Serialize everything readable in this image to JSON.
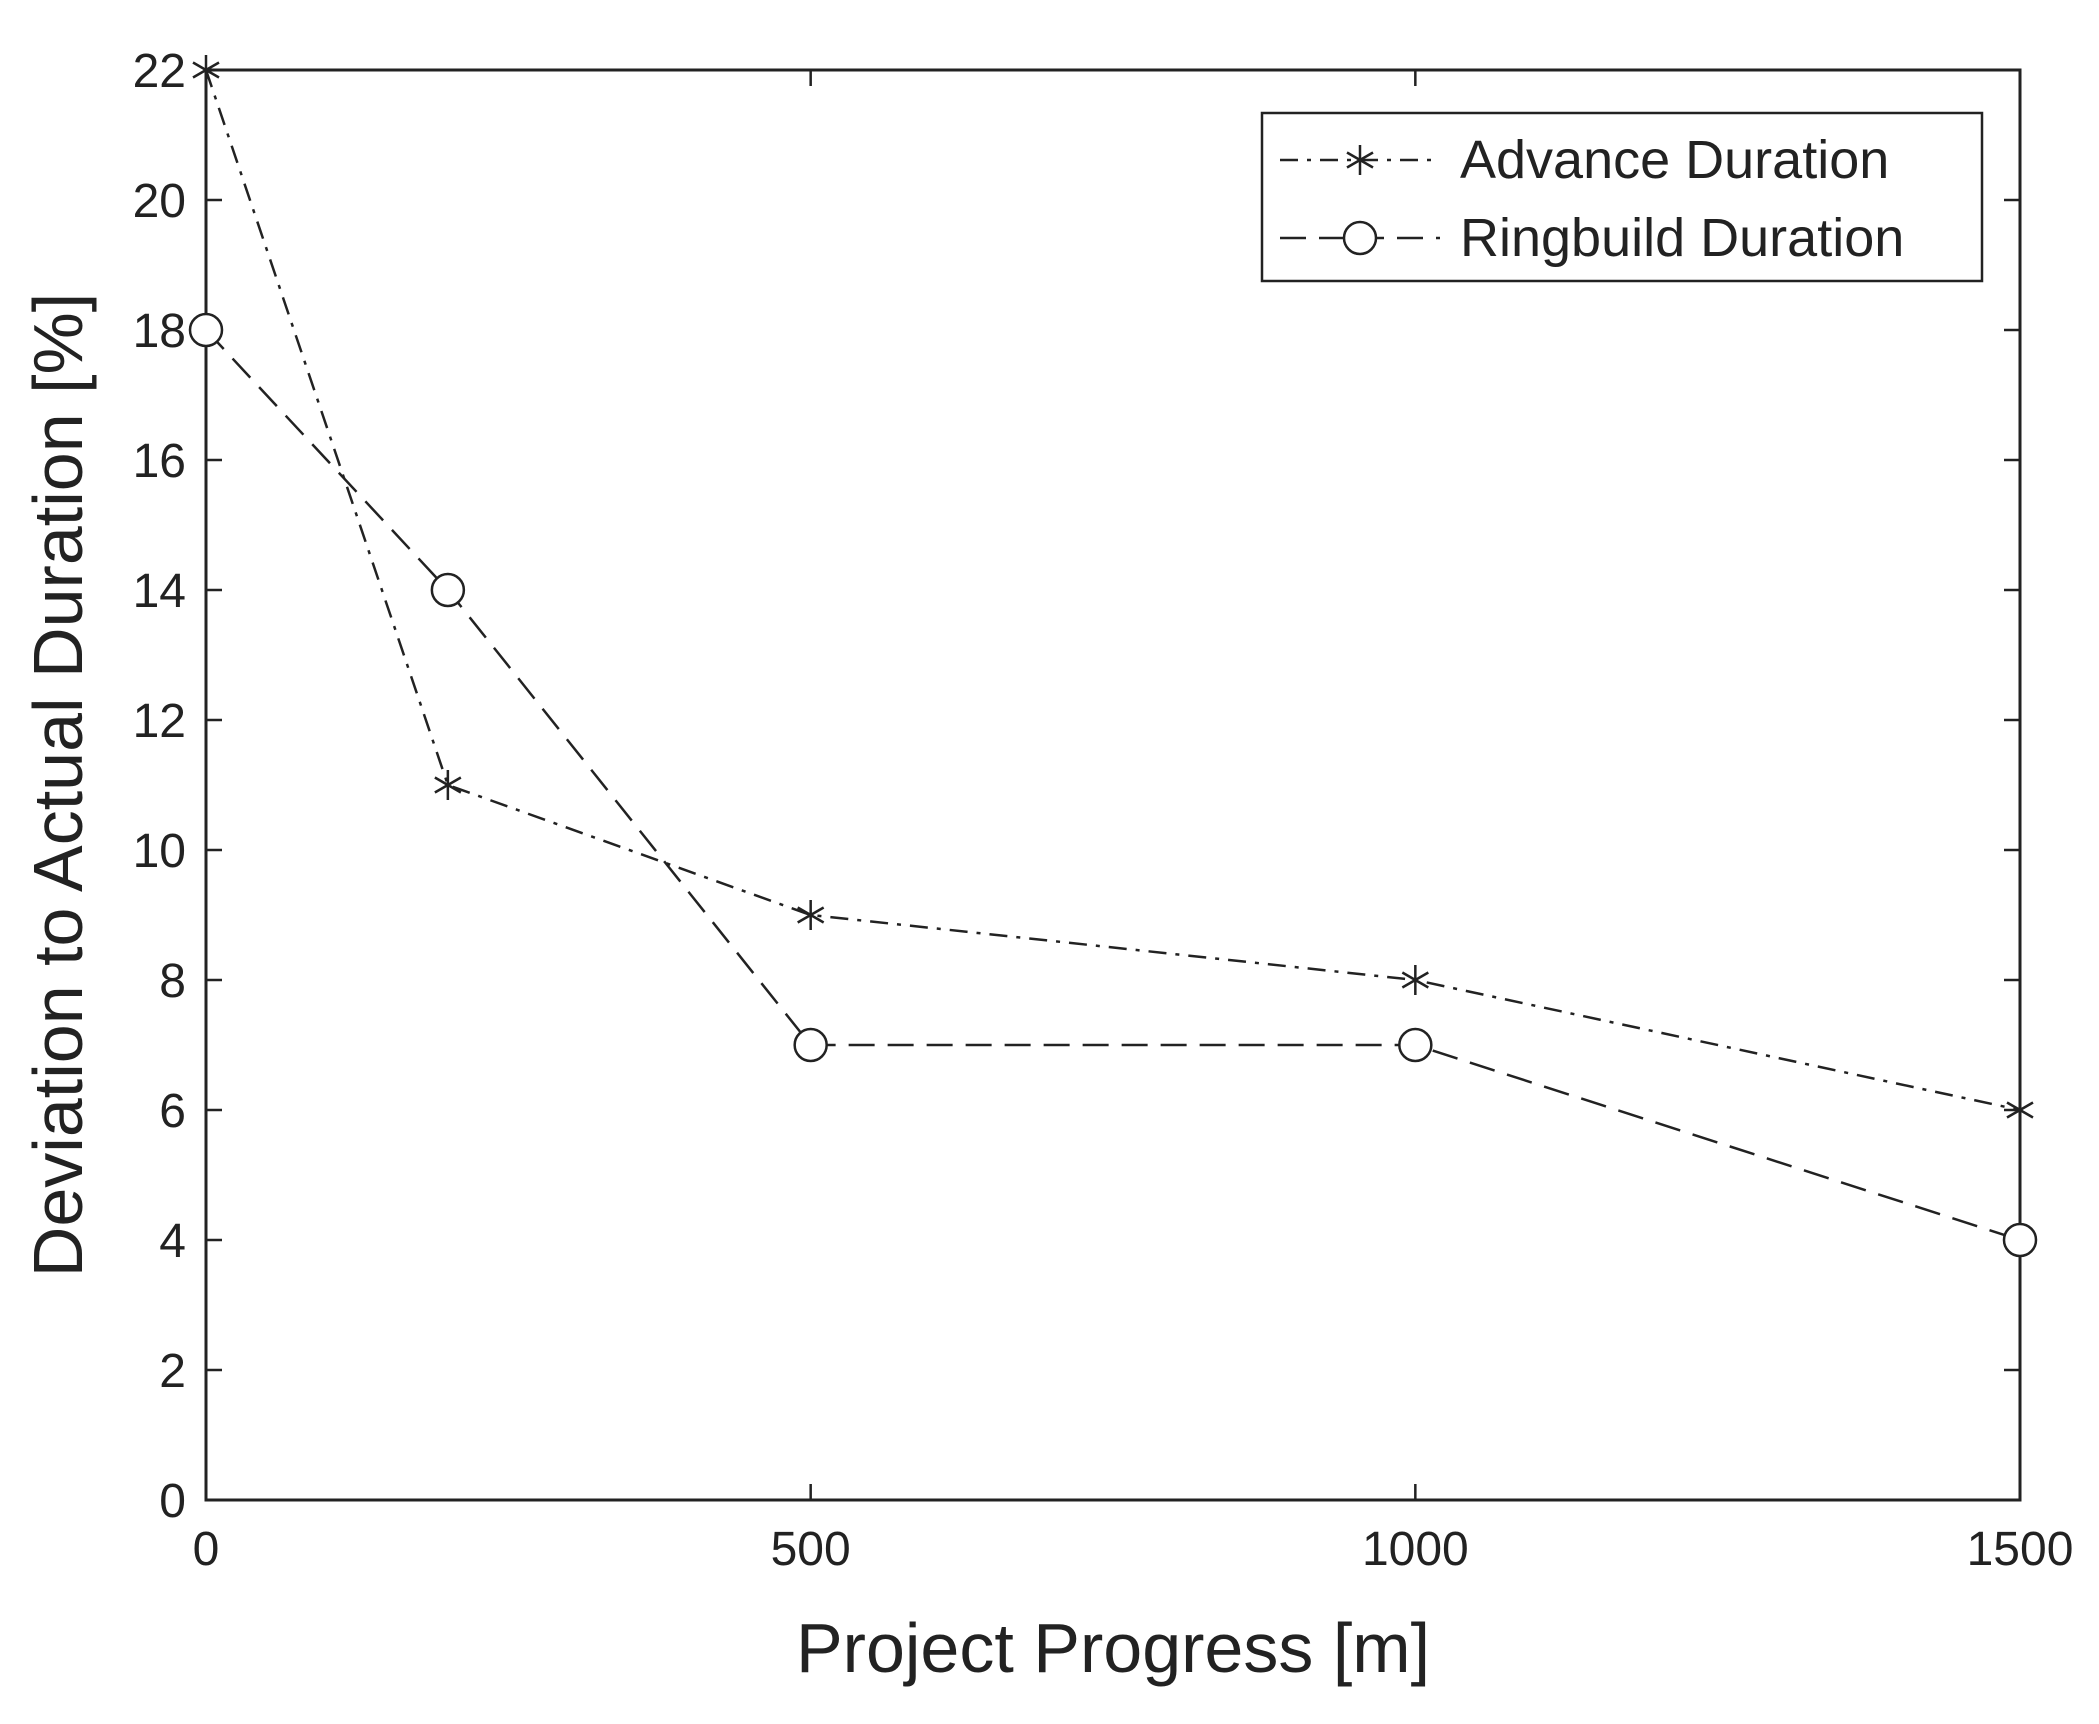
{
  "chart_data": {
    "type": "line",
    "title": "",
    "xlabel": "Project Progress [m]",
    "ylabel": "Deviation to Actual Duration [%]",
    "xlim": [
      0,
      1500
    ],
    "ylim": [
      0,
      22
    ],
    "xticks": [
      0,
      500,
      1000,
      1500
    ],
    "yticks": [
      0,
      2,
      4,
      6,
      8,
      10,
      12,
      14,
      16,
      18,
      20,
      22
    ],
    "grid": false,
    "legend_position": "top-right",
    "series": [
      {
        "name": "Advance Duration",
        "marker": "asterisk",
        "line_style": "dash-dot",
        "x": [
          0,
          200,
          500,
          1000,
          1500
        ],
        "y": [
          22,
          11,
          9,
          8,
          6
        ]
      },
      {
        "name": "Ringbuild Duration",
        "marker": "circle",
        "line_style": "dashed",
        "x": [
          0,
          200,
          500,
          1000,
          1500
        ],
        "y": [
          18,
          14,
          7,
          7,
          4
        ]
      }
    ],
    "colors": {
      "ink": "#222222",
      "background": "#ffffff"
    }
  }
}
